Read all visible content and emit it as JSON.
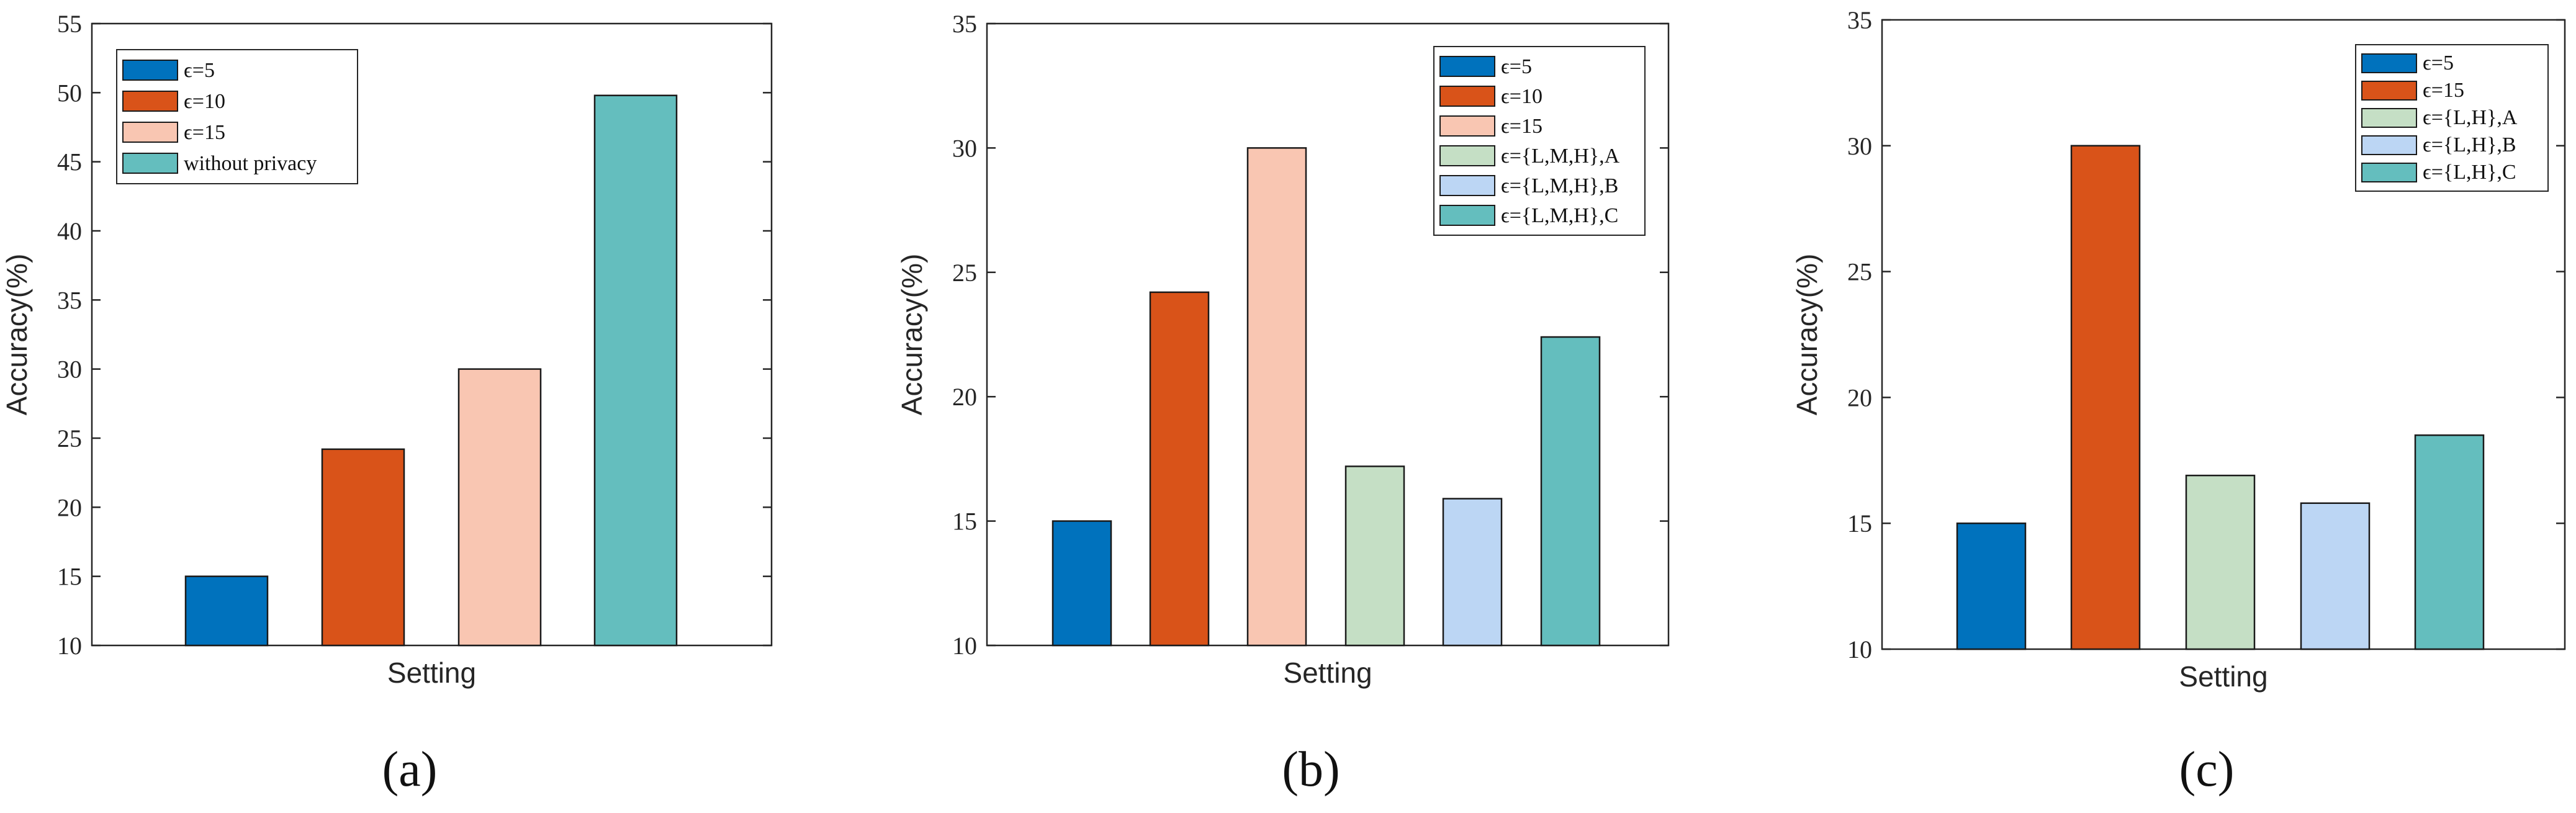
{
  "chart_data": [
    {
      "panel": "a",
      "type": "bar",
      "categories": [
        "ϵ=5",
        "ϵ=10",
        "ϵ=15",
        "without privacy"
      ],
      "values": [
        15,
        24.2,
        30,
        49.8
      ],
      "colors": [
        "#0072BD",
        "#D95319",
        "#F9C6B2",
        "#64BEBE"
      ],
      "xlabel": "Setting",
      "ylabel": "Accuracy(%)",
      "ylim": [
        10,
        55
      ],
      "yticks": [
        10,
        15,
        20,
        25,
        30,
        35,
        40,
        45,
        50,
        55
      ],
      "legend_entries": [
        "ϵ=5",
        "ϵ=10",
        "ϵ=15",
        "without privacy"
      ],
      "legend_position": "top-left"
    },
    {
      "panel": "b",
      "type": "bar",
      "categories": [
        "ϵ=5",
        "ϵ=10",
        "ϵ=15",
        "ϵ={L,M,H},A",
        "ϵ={L,M,H},B",
        "ϵ={L,M,H},C"
      ],
      "values": [
        15,
        24.2,
        30,
        17.2,
        15.9,
        22.4
      ],
      "colors": [
        "#0072BD",
        "#D95319",
        "#F9C6B2",
        "#C5DFC5",
        "#BCD6F4",
        "#64BEBE"
      ],
      "xlabel": "Setting",
      "ylabel": "Accuracy(%)",
      "ylim": [
        10,
        35
      ],
      "yticks": [
        10,
        15,
        20,
        25,
        30,
        35
      ],
      "legend_entries": [
        "ϵ=5",
        "ϵ=10",
        "ϵ=15",
        "ϵ={L,M,H},A",
        "ϵ={L,M,H},B",
        "ϵ={L,M,H},C"
      ],
      "legend_position": "top-right"
    },
    {
      "panel": "c",
      "type": "bar",
      "categories": [
        "ϵ=5",
        "ϵ=15",
        "ϵ={L,H},A",
        "ϵ={L,H},B",
        "ϵ={L,H},C"
      ],
      "values": [
        15,
        30,
        16.9,
        15.8,
        18.5
      ],
      "colors": [
        "#0072BD",
        "#D95319",
        "#C5DFC5",
        "#BCD6F4",
        "#64BEBE"
      ],
      "xlabel": "Setting",
      "ylabel": "Accuracy(%)",
      "ylim": [
        10,
        35
      ],
      "yticks": [
        10,
        15,
        20,
        25,
        30,
        35
      ],
      "legend_entries": [
        "ϵ=5",
        "ϵ=15",
        "ϵ={L,H},A",
        "ϵ={L,H},B",
        "ϵ={L,H},C"
      ],
      "legend_position": "top-right"
    }
  ],
  "panel_labels": [
    "(a)",
    "(b)",
    "(c)"
  ]
}
